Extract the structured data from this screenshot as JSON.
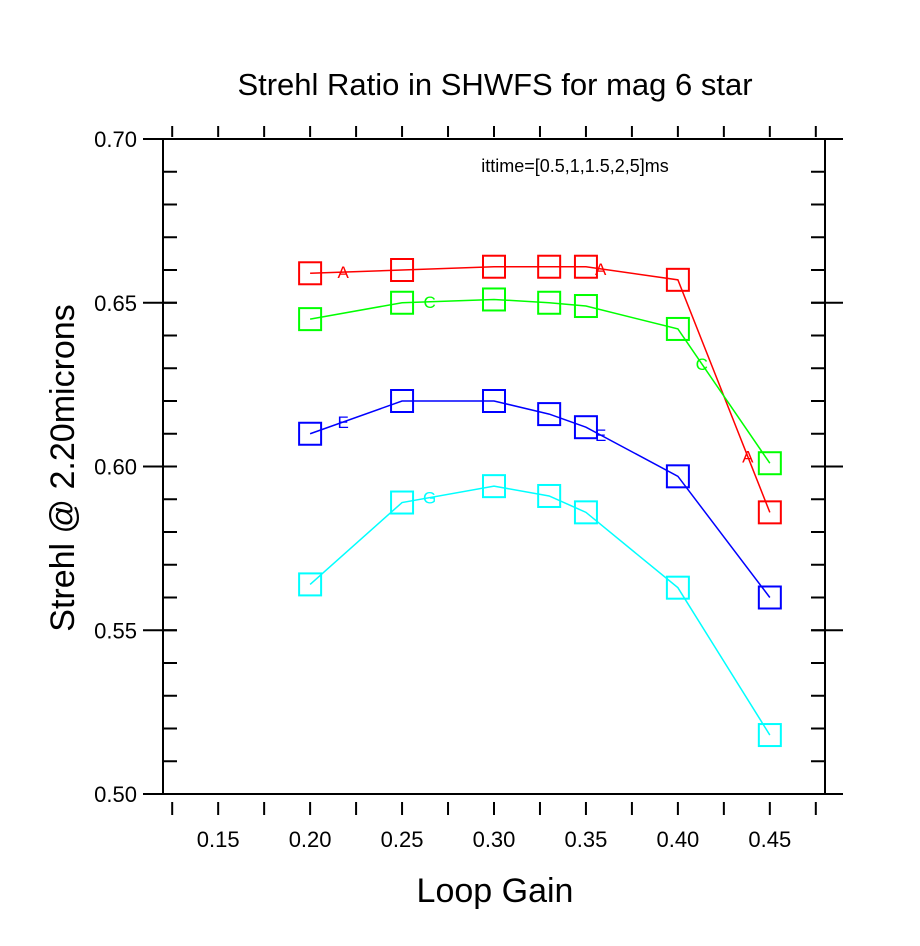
{
  "chart_data": {
    "type": "line",
    "title": "Strehl Ratio in SHWFS for mag 6 star",
    "xlabel": "Loop Gain",
    "ylabel": "Strehl @ 2.20microns",
    "annotation": "ittime=[0.5,1,1.5,2,5]ms",
    "xlim": [
      0.12,
      0.48
    ],
    "ylim": [
      0.5,
      0.7
    ],
    "x_ticks": [
      "0.15",
      "0.20",
      "0.25",
      "0.30",
      "0.35",
      "0.40",
      "0.45"
    ],
    "y_ticks": [
      "0.50",
      "0.55",
      "0.60",
      "0.65",
      "0.70"
    ],
    "grid": false,
    "marker": "square",
    "series": [
      {
        "name": "A",
        "color": "#ff0000",
        "x": [
          0.2,
          0.25,
          0.3,
          0.33,
          0.35,
          0.4,
          0.45
        ],
        "y": [
          0.659,
          0.66,
          0.661,
          0.661,
          0.661,
          0.657,
          0.586
        ],
        "label_x": [
          0.218,
          0.358,
          0.438
        ]
      },
      {
        "name": "C",
        "color": "#00ff00",
        "x": [
          0.2,
          0.25,
          0.3,
          0.33,
          0.35,
          0.4,
          0.45
        ],
        "y": [
          0.645,
          0.65,
          0.651,
          0.65,
          0.649,
          0.642,
          0.601
        ],
        "label_x": [
          0.265,
          0.413
        ]
      },
      {
        "name": "E",
        "color": "#0000ff",
        "x": [
          0.2,
          0.25,
          0.3,
          0.33,
          0.35,
          0.4,
          0.45
        ],
        "y": [
          0.61,
          0.62,
          0.62,
          0.616,
          0.612,
          0.597,
          0.56
        ],
        "label_x": [
          0.218,
          0.358
        ]
      },
      {
        "name": "G",
        "color": "#00ffff",
        "x": [
          0.2,
          0.25,
          0.3,
          0.33,
          0.35,
          0.4,
          0.45
        ],
        "y": [
          0.564,
          0.589,
          0.594,
          0.591,
          0.586,
          0.563,
          0.518
        ],
        "label_x": [
          0.265
        ]
      }
    ]
  }
}
